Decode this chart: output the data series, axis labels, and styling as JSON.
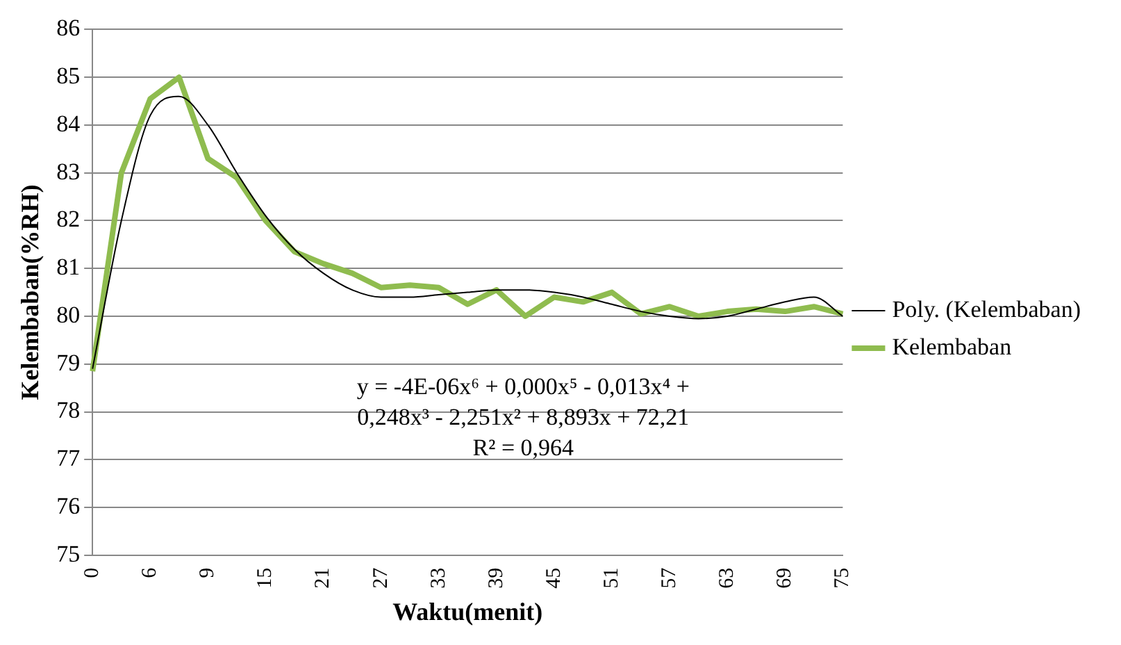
{
  "chart_data": {
    "type": "line",
    "xlabel": "Waktu(menit)",
    "ylabel": "Kelembaban(%RH)",
    "categories": [
      "0",
      null,
      "6",
      null,
      "9",
      null,
      "15",
      null,
      "21",
      null,
      "27",
      null,
      "33",
      null,
      "39",
      null,
      "45",
      null,
      "51",
      null,
      "57",
      null,
      "63",
      null,
      "69",
      null,
      "75"
    ],
    "series": [
      {
        "name": "Kelembaban",
        "color": "#8fbc4f",
        "values": [
          78.85,
          83.0,
          84.55,
          85.0,
          83.3,
          82.9,
          82.0,
          81.35,
          81.1,
          80.9,
          80.6,
          80.65,
          80.6,
          80.25,
          80.55,
          80.0,
          80.4,
          80.3,
          80.5,
          80.05,
          80.2,
          80.0,
          80.1,
          80.15,
          80.1,
          80.2,
          80.05
        ]
      },
      {
        "name": "Poly. (Kelembaban)",
        "color": "#000000",
        "values": [
          78.9,
          82.0,
          84.2,
          84.6,
          84.0,
          83.0,
          82.1,
          81.4,
          80.9,
          80.55,
          80.4,
          80.4,
          80.45,
          80.5,
          80.55,
          80.55,
          80.5,
          80.4,
          80.25,
          80.1,
          80.0,
          79.95,
          80.0,
          80.15,
          80.3,
          80.4,
          80.0
        ]
      }
    ],
    "ylim": [
      75,
      86
    ],
    "yticks": [
      75,
      76,
      77,
      78,
      79,
      80,
      81,
      82,
      83,
      84,
      85,
      86
    ],
    "grid": "y",
    "legend": "right",
    "marker": "none",
    "line_style": "solid",
    "annotations": [
      "y = -4E-06x⁶ + 0,000x⁵ - 0,013x⁴ +",
      "0,248x³ - 2,251x² + 8,893x + 72,21",
      "R² = 0,964"
    ]
  }
}
